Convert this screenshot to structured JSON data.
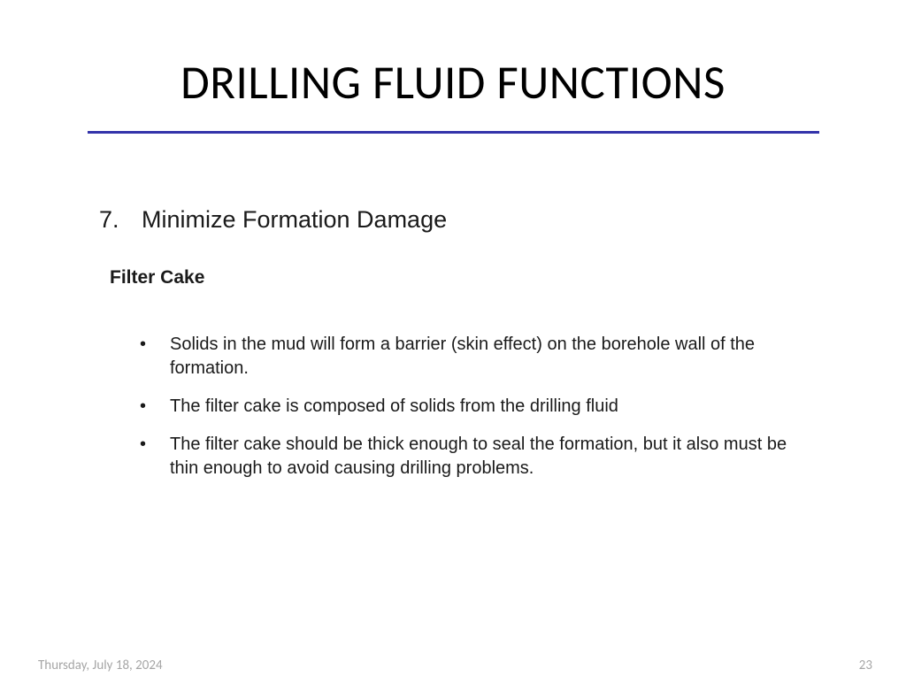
{
  "title": "DRILLING FLUID FUNCTIONS",
  "divider_color": "#3333aa",
  "section": {
    "number": "7.",
    "heading": "Minimize Formation Damage"
  },
  "sub_heading": "Filter Cake",
  "bullets": [
    "Solids in the mud will form a barrier (skin effect) on the borehole wall of the formation.",
    "The filter cake is composed of solids from the drilling fluid",
    "The filter cake should be thick enough to seal the formation, but it also must be thin enough to avoid causing drilling problems."
  ],
  "footer": {
    "date": "Thursday, July 18, 2024",
    "page": "23"
  },
  "colors": {
    "background": "#ffffff",
    "text": "#1a1a1a",
    "footer_text": "#a6a6a6"
  },
  "typography": {
    "title_fontsize": 53,
    "section_fontsize": 27,
    "sub_heading_fontsize": 21,
    "body_fontsize": 20,
    "footer_fontsize": 15
  }
}
